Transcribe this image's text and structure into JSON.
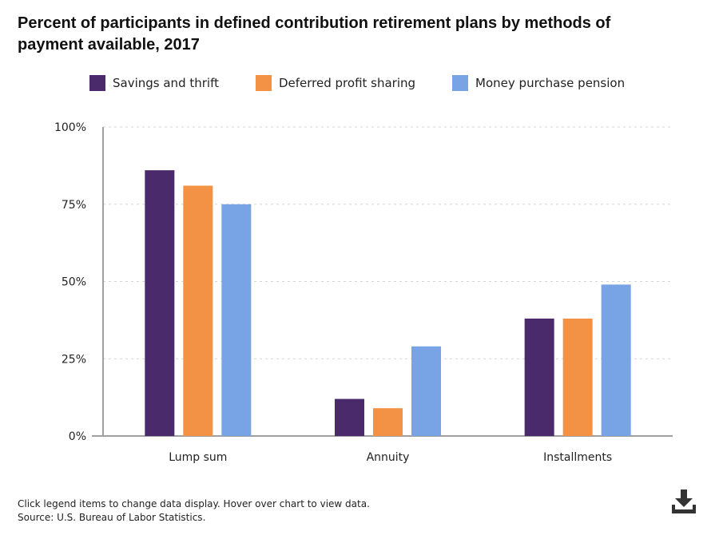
{
  "chart_data": {
    "type": "bar",
    "title": "Percent of participants in defined contribution retirement plans by methods of payment available, 2017",
    "categories": [
      "Lump sum",
      "Annuity",
      "Installments"
    ],
    "series": [
      {
        "name": "Savings and thrift",
        "color": "#4b2a6b",
        "values": [
          86,
          12,
          38
        ]
      },
      {
        "name": "Deferred profit sharing",
        "color": "#f39244",
        "values": [
          81,
          9,
          38
        ]
      },
      {
        "name": "Money purchase pension",
        "color": "#78a4e6",
        "values": [
          75,
          29,
          49
        ]
      }
    ],
    "xlabel": "",
    "ylabel": "",
    "ylim": [
      0,
      100
    ],
    "yticks": [
      0,
      25,
      50,
      75,
      100
    ],
    "ytick_labels": [
      "0%",
      "25%",
      "50%",
      "75%",
      "100%"
    ],
    "y_unit": "%",
    "grid": true,
    "legend_position": "top"
  },
  "footer": {
    "note": "Click legend items to change data display. Hover over chart to view data.",
    "source": "Source: U.S. Bureau of Labor Statistics."
  },
  "icons": {
    "download": "download-icon"
  },
  "colors": {
    "axis": "#a0a0a0",
    "grid": "#d4d4d4",
    "text": "#222222"
  }
}
